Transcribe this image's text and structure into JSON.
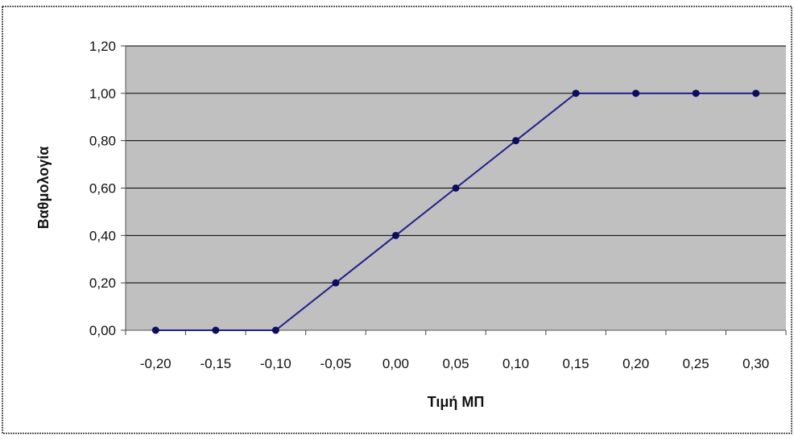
{
  "chart_data": {
    "type": "line",
    "title": "",
    "xlabel": "Τιμή ΜΠ",
    "ylabel": "Βαθμολογία",
    "categories": [
      "-0,20",
      "-0,15",
      "-0,10",
      "-0,05",
      "0,00",
      "0,05",
      "0,10",
      "0,15",
      "0,20",
      "0,25",
      "0,30"
    ],
    "series": [
      {
        "values": [
          0.0,
          0.0,
          0.0,
          0.2,
          0.4,
          0.6,
          0.8,
          1.0,
          1.0,
          1.0,
          1.0
        ]
      }
    ],
    "yticks": [
      "0,00",
      "0,20",
      "0,40",
      "0,60",
      "0,80",
      "1,00",
      "1,20"
    ],
    "ylim": [
      0,
      1.2
    ],
    "grid": true,
    "legend": "none",
    "colors": {
      "plot_background": "#c0c0c0",
      "gridline": "#000000",
      "line": "#1f1f8c",
      "marker": "#0d0d5e"
    }
  }
}
